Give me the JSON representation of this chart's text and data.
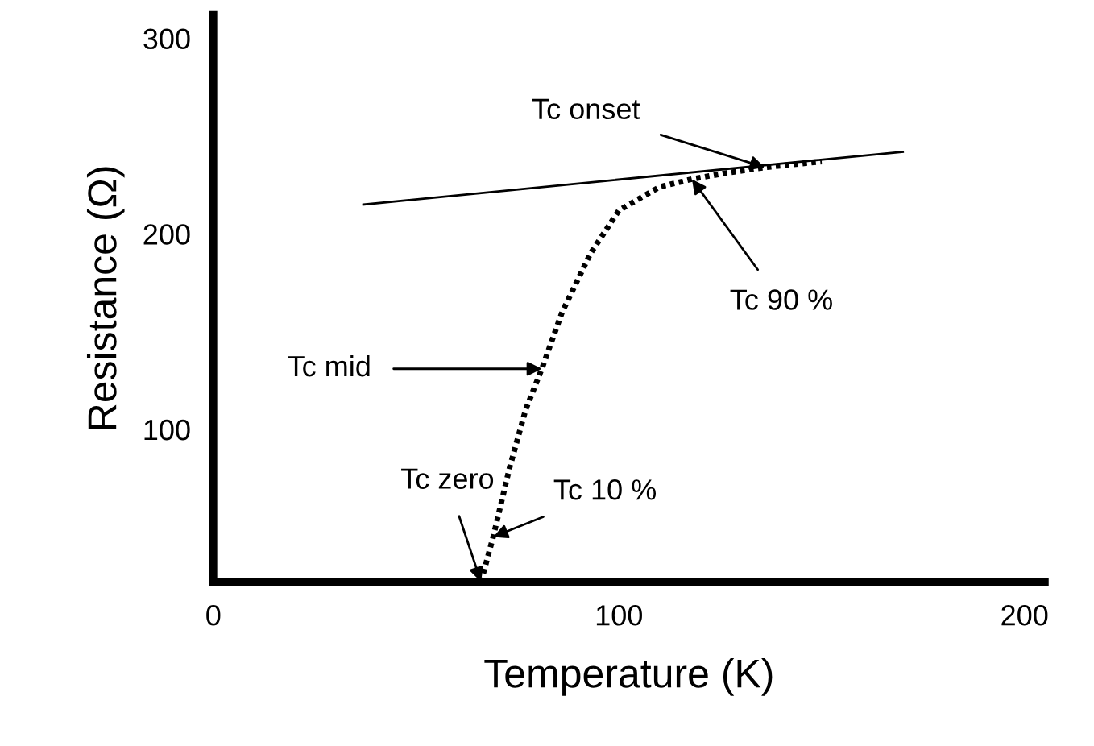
{
  "chart_data": {
    "type": "line",
    "xlabel": "Temperature (K)",
    "ylabel": "Resistance (Ω)",
    "xlim": [
      0,
      205
    ],
    "ylim": [
      22,
      312
    ],
    "xticks": [
      0,
      100,
      200
    ],
    "yticks": [
      100,
      200,
      300
    ],
    "grid": false,
    "legend": false,
    "marker": "none",
    "series": [
      {
        "color": "#000000",
        "line_style": "solid",
        "x": [
          37,
          170
        ],
        "values": [
          215,
          242
        ]
      },
      {
        "color": "#000000",
        "line_style": "dotted",
        "x": [
          66,
          69,
          73,
          77,
          81,
          86,
          93,
          100,
          110,
          118,
          126,
          136,
          150
        ],
        "values": [
          22,
          45,
          80,
          110,
          131,
          160,
          190,
          212,
          224,
          228,
          231,
          234,
          237
        ]
      }
    ],
    "annotations": [
      {
        "text": "Tc onset",
        "x": 136,
        "y": 234
      },
      {
        "text": "Tc 90 %",
        "x": 118,
        "y": 228
      },
      {
        "text": "Tc mid",
        "x": 81,
        "y": 131
      },
      {
        "text": "Tc zero",
        "x": 66,
        "y": 22
      },
      {
        "text": "Tc 10 %",
        "x": 69,
        "y": 45
      }
    ]
  }
}
